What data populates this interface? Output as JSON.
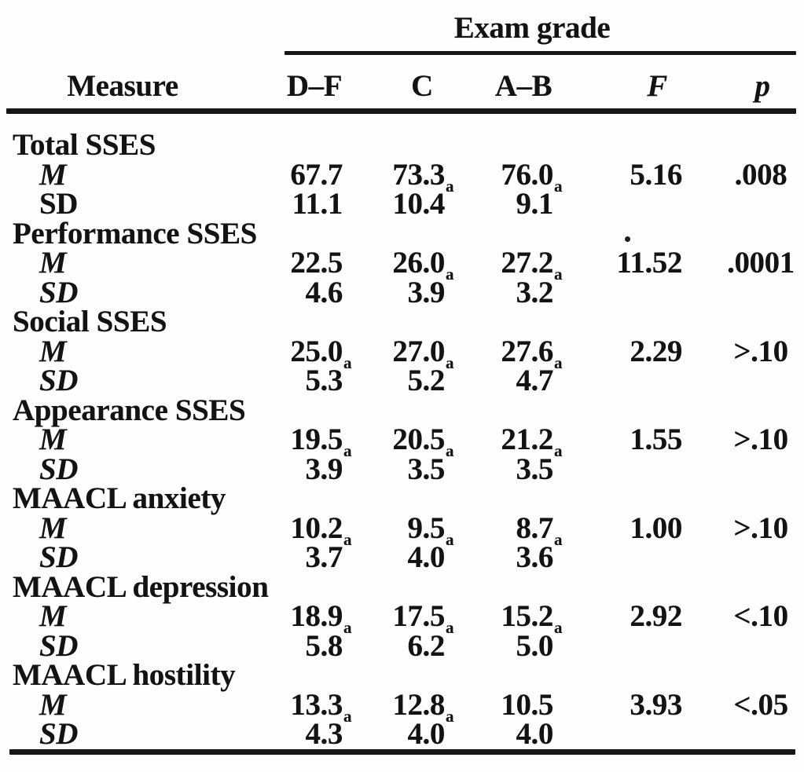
{
  "page": {
    "background": "#fefefe",
    "ink": "#131313"
  },
  "table": {
    "spanner_label": "Exam grade",
    "columns": [
      "Measure",
      "D–F",
      "C",
      "A–B",
      "F",
      "p"
    ],
    "rows": [
      {
        "type": "section",
        "label": "Total SSES",
        "italic": false
      },
      {
        "type": "data",
        "label": "M",
        "italic": true,
        "values": [
          {
            "v": "67.7",
            "sub": ""
          },
          {
            "v": "73.3",
            "sub": "a"
          },
          {
            "v": "76.0",
            "sub": "a"
          }
        ],
        "F": "5.16",
        "p": ".008"
      },
      {
        "type": "data",
        "label": "SD",
        "italic": false,
        "values": [
          {
            "v": "11.1",
            "sub": ""
          },
          {
            "v": "10.4",
            "sub": ""
          },
          {
            "v": "9.1",
            "sub": ""
          }
        ],
        "F": "",
        "p": ""
      },
      {
        "type": "section",
        "label": "Performance SSES",
        "italic": false
      },
      {
        "type": "data",
        "label": "M",
        "italic": true,
        "values": [
          {
            "v": "22.5",
            "sub": ""
          },
          {
            "v": "26.0",
            "sub": "a"
          },
          {
            "v": "27.2",
            "sub": "a"
          }
        ],
        "F": "11.52",
        "p": ".0001"
      },
      {
        "type": "data",
        "label": "SD",
        "italic": true,
        "values": [
          {
            "v": "4.6",
            "sub": ""
          },
          {
            "v": "3.9",
            "sub": ""
          },
          {
            "v": "3.2",
            "sub": ""
          }
        ],
        "F": "",
        "p": ""
      },
      {
        "type": "section",
        "label": "Social SSES",
        "italic": false
      },
      {
        "type": "data",
        "label": "M",
        "italic": true,
        "values": [
          {
            "v": "25.0",
            "sub": "a"
          },
          {
            "v": "27.0",
            "sub": "a"
          },
          {
            "v": "27.6",
            "sub": "a"
          }
        ],
        "F": "2.29",
        "p": ">.10"
      },
      {
        "type": "data",
        "label": "SD",
        "italic": true,
        "values": [
          {
            "v": "5.3",
            "sub": ""
          },
          {
            "v": "5.2",
            "sub": ""
          },
          {
            "v": "4.7",
            "sub": ""
          }
        ],
        "F": "",
        "p": ""
      },
      {
        "type": "section",
        "label": "Appearance SSES",
        "italic": false
      },
      {
        "type": "data",
        "label": "M",
        "italic": true,
        "values": [
          {
            "v": "19.5",
            "sub": "a"
          },
          {
            "v": "20.5",
            "sub": "a"
          },
          {
            "v": "21.2",
            "sub": "a"
          }
        ],
        "F": "1.55",
        "p": ">.10"
      },
      {
        "type": "data",
        "label": "SD",
        "italic": true,
        "values": [
          {
            "v": "3.9",
            "sub": ""
          },
          {
            "v": "3.5",
            "sub": ""
          },
          {
            "v": "3.5",
            "sub": ""
          }
        ],
        "F": "",
        "p": ""
      },
      {
        "type": "section",
        "label": "MAACL anxiety",
        "italic": false
      },
      {
        "type": "data",
        "label": "M",
        "italic": true,
        "values": [
          {
            "v": "10.2",
            "sub": "a"
          },
          {
            "v": "9.5",
            "sub": "a"
          },
          {
            "v": "8.7",
            "sub": "a"
          }
        ],
        "F": "1.00",
        "p": ">.10"
      },
      {
        "type": "data",
        "label": "SD",
        "italic": true,
        "values": [
          {
            "v": "3.7",
            "sub": ""
          },
          {
            "v": "4.0",
            "sub": ""
          },
          {
            "v": "3.6",
            "sub": ""
          }
        ],
        "F": "",
        "p": ""
      },
      {
        "type": "section",
        "label": "MAACL depression",
        "italic": false
      },
      {
        "type": "data",
        "label": "M",
        "italic": true,
        "values": [
          {
            "v": "18.9",
            "sub": "a"
          },
          {
            "v": "17.5",
            "sub": "a"
          },
          {
            "v": "15.2",
            "sub": "a"
          }
        ],
        "F": "2.92",
        "p": "<.10"
      },
      {
        "type": "data",
        "label": "SD",
        "italic": true,
        "values": [
          {
            "v": "5.8",
            "sub": ""
          },
          {
            "v": "6.2",
            "sub": ""
          },
          {
            "v": "5.0",
            "sub": ""
          }
        ],
        "F": "",
        "p": ""
      },
      {
        "type": "section",
        "label": "MAACL hostility",
        "italic": false
      },
      {
        "type": "data",
        "label": "M",
        "italic": true,
        "values": [
          {
            "v": "13.3",
            "sub": "a"
          },
          {
            "v": "12.8",
            "sub": "a"
          },
          {
            "v": "10.5",
            "sub": ""
          }
        ],
        "F": "3.93",
        "p": "<.05"
      },
      {
        "type": "data",
        "label": "SD",
        "italic": true,
        "values": [
          {
            "v": "4.3",
            "sub": ""
          },
          {
            "v": "4.0",
            "sub": ""
          },
          {
            "v": "4.0",
            "sub": ""
          }
        ],
        "F": "",
        "p": ""
      }
    ]
  }
}
